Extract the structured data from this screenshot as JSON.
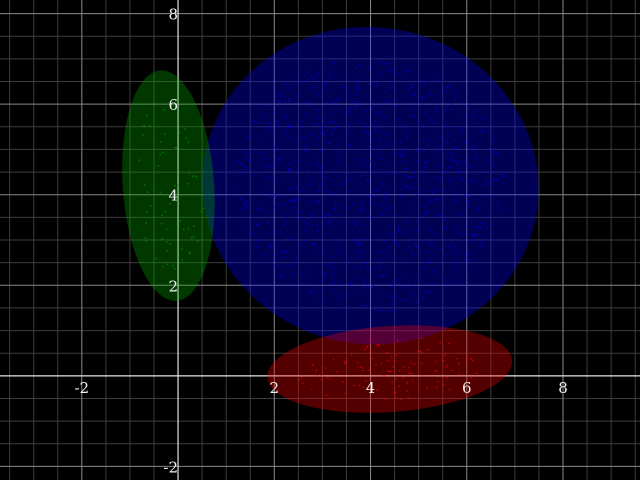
{
  "chart_data": {
    "type": "scatter",
    "title": "",
    "xlabel": "",
    "ylabel": "",
    "xlim": [
      -3.7,
      9.6
    ],
    "ylim": [
      -2.3,
      8.3
    ],
    "grid": true,
    "minor_grid_step": 0.5,
    "major_grid_step": 2,
    "background": "#000000",
    "x_ticks": [
      {
        "value": -2,
        "label": "-2"
      },
      {
        "value": 2,
        "label": "2"
      },
      {
        "value": 4,
        "label": "4"
      },
      {
        "value": 6,
        "label": "6"
      },
      {
        "value": 8,
        "label": "8"
      }
    ],
    "y_ticks": [
      {
        "value": -2,
        "label": "-2"
      },
      {
        "value": 2,
        "label": "2"
      },
      {
        "value": 4,
        "label": "4"
      },
      {
        "value": 6,
        "label": "6"
      },
      {
        "value": 8,
        "label": "8"
      }
    ],
    "clusters": [
      {
        "color": "#0000ff",
        "center": [
          4.0,
          4.2
        ],
        "radii": [
          3.5,
          3.5
        ],
        "rotation_deg": 10,
        "point_count": 900,
        "spread": 0.8
      },
      {
        "color": "#00aa00",
        "center": [
          -0.2,
          4.2
        ],
        "radii": [
          0.95,
          2.55
        ],
        "rotation_deg": -4,
        "point_count": 60,
        "spread": 0.75
      },
      {
        "color": "#ff0000",
        "center": [
          4.4,
          0.15
        ],
        "radii": [
          2.55,
          0.95
        ],
        "rotation_deg": -4,
        "point_count": 110,
        "spread": 0.75
      }
    ]
  }
}
